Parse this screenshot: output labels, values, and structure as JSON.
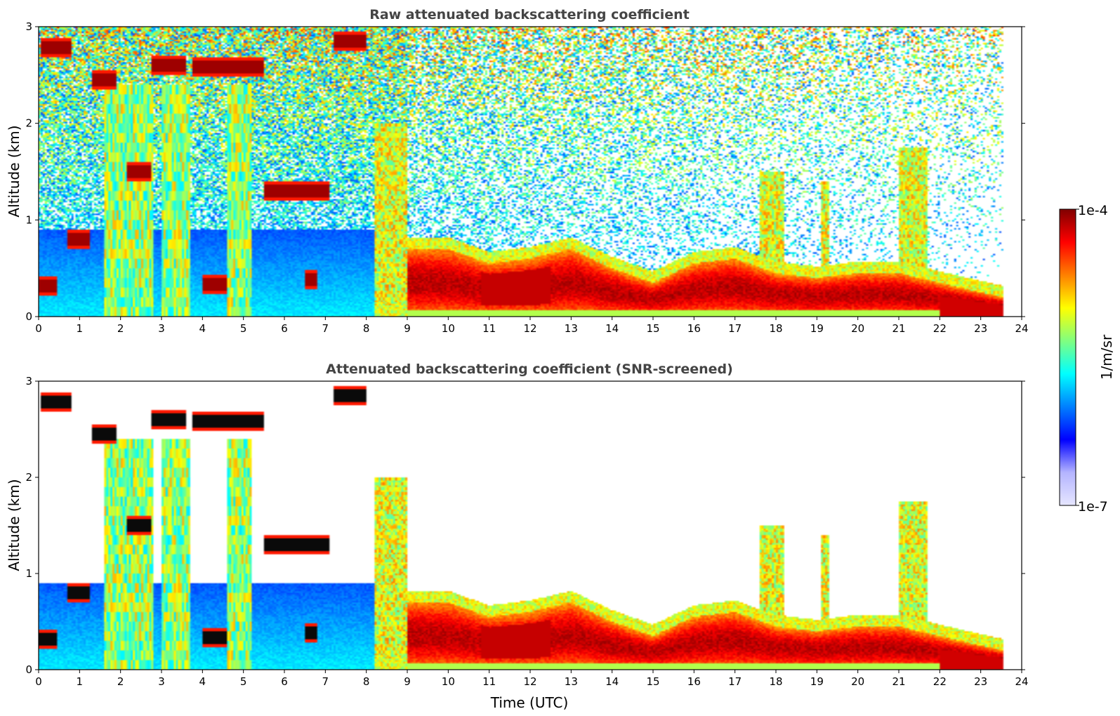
{
  "chart_data": [
    {
      "type": "heatmap",
      "id": "raw",
      "title": "Raw attenuated backscattering coefficient",
      "xlabel": "",
      "ylabel": "Altitude (km)",
      "xlim": [
        0,
        24
      ],
      "ylim": [
        0,
        3
      ],
      "xticks": [
        "0",
        "1",
        "2",
        "3",
        "4",
        "5",
        "6",
        "7",
        "8",
        "9",
        "10",
        "11",
        "12",
        "13",
        "14",
        "15",
        "16",
        "17",
        "18",
        "19",
        "20",
        "21",
        "22",
        "23",
        "24"
      ],
      "yticks": [
        "0",
        "1",
        "2",
        "3"
      ],
      "screened": false,
      "cloud_layers": [
        {
          "t0": 0.05,
          "t1": 0.8,
          "z": 2.78
        },
        {
          "t0": 1.3,
          "t1": 1.9,
          "z": 2.45
        },
        {
          "t0": 2.75,
          "t1": 3.6,
          "z": 2.6
        },
        {
          "t0": 3.75,
          "t1": 5.5,
          "z": 2.58
        },
        {
          "t0": 7.2,
          "t1": 8.0,
          "z": 2.85
        },
        {
          "t0": 2.15,
          "t1": 2.75,
          "z": 1.5
        },
        {
          "t0": 5.5,
          "t1": 7.1,
          "z": 1.3
        },
        {
          "t0": 0.7,
          "t1": 1.25,
          "z": 0.8
        },
        {
          "t0": 0.0,
          "t1": 0.45,
          "z": 0.32
        },
        {
          "t0": 4.0,
          "t1": 4.6,
          "z": 0.33
        },
        {
          "t0": 6.5,
          "t1": 6.8,
          "z": 0.38
        }
      ],
      "boundary_layer_top": [
        {
          "t": 9.0,
          "z": 0.7
        },
        {
          "t": 10.0,
          "z": 0.7
        },
        {
          "t": 11.0,
          "z": 0.55
        },
        {
          "t": 12.0,
          "z": 0.6
        },
        {
          "t": 13.0,
          "z": 0.7
        },
        {
          "t": 14.0,
          "z": 0.5
        },
        {
          "t": 15.0,
          "z": 0.35
        },
        {
          "t": 16.0,
          "z": 0.55
        },
        {
          "t": 17.0,
          "z": 0.6
        },
        {
          "t": 18.0,
          "z": 0.45
        },
        {
          "t": 19.0,
          "z": 0.4
        },
        {
          "t": 20.0,
          "z": 0.45
        },
        {
          "t": 21.0,
          "z": 0.45
        },
        {
          "t": 22.0,
          "z": 0.35
        },
        {
          "t": 23.0,
          "z": 0.25
        },
        {
          "t": 23.55,
          "z": 0.2
        }
      ],
      "data_end_time": 23.55
    },
    {
      "type": "heatmap",
      "id": "screened",
      "title": "Attenuated backscattering coefficient (SNR-screened)",
      "xlabel": "Time (UTC)",
      "ylabel": "Altitude (km)",
      "xlim": [
        0,
        24
      ],
      "ylim": [
        0,
        3
      ],
      "xticks": [
        "0",
        "1",
        "2",
        "3",
        "4",
        "5",
        "6",
        "7",
        "8",
        "9",
        "10",
        "11",
        "12",
        "13",
        "14",
        "15",
        "16",
        "17",
        "18",
        "19",
        "20",
        "21",
        "22",
        "23",
        "24"
      ],
      "yticks": [
        "0",
        "1",
        "2",
        "3"
      ],
      "screened": true,
      "data_end_time": 23.55
    }
  ],
  "colorbar": {
    "label": "1/m/sr",
    "max_label": "1e-4",
    "min_label": "1e-7",
    "colormap": "jet",
    "colors": [
      "#e6e6ff",
      "#b4b4ff",
      "#0000ff",
      "#0080ff",
      "#00ffff",
      "#80ff80",
      "#ffff00",
      "#ff8000",
      "#ff0000",
      "#800000"
    ]
  }
}
